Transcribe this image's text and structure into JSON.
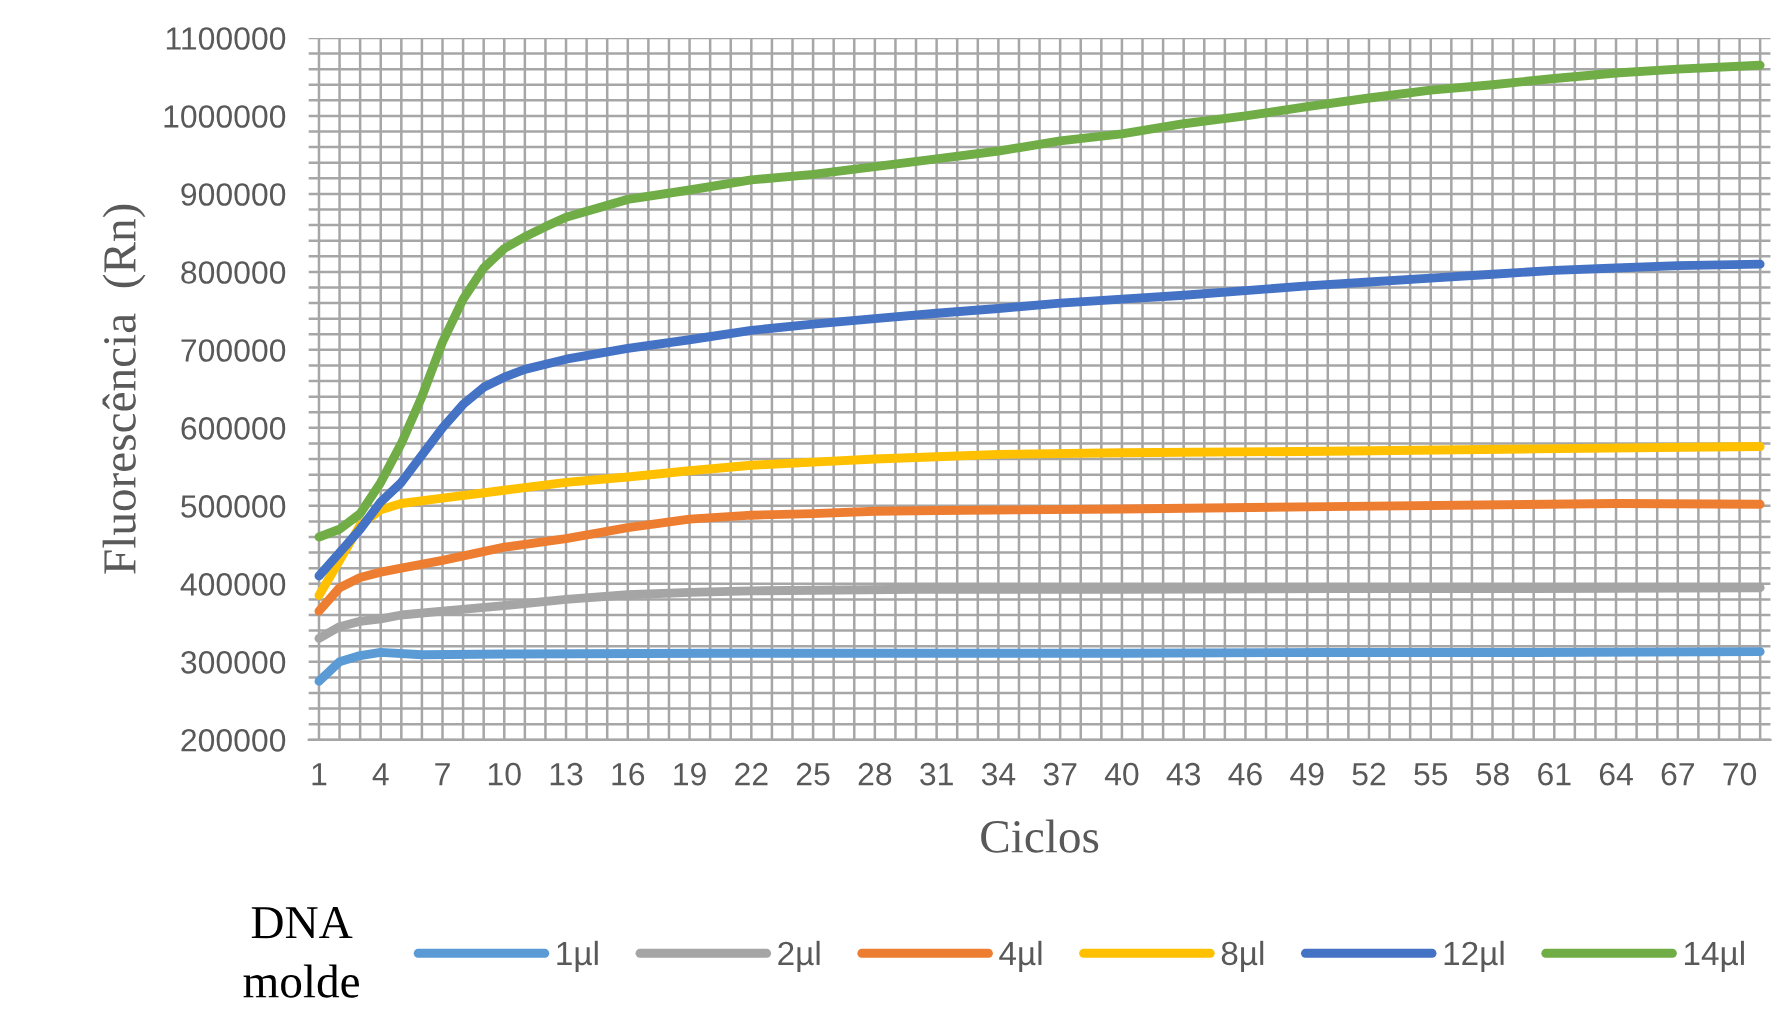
{
  "chart_data": {
    "type": "line",
    "xlabel": "Ciclos",
    "ylabel": "Fluorescência  (Rn)",
    "legend_title": "DNA\nmolde",
    "xlim": [
      0.5,
      71.5
    ],
    "xticks": [
      1,
      4,
      7,
      10,
      13,
      16,
      19,
      22,
      25,
      28,
      31,
      34,
      37,
      40,
      43,
      46,
      49,
      52,
      55,
      58,
      61,
      64,
      67,
      70
    ],
    "ylim": [
      200000,
      1100000
    ],
    "yticks": [
      200000,
      300000,
      400000,
      500000,
      600000,
      700000,
      800000,
      900000,
      1000000,
      1100000
    ],
    "grid": true,
    "legend": "bottom",
    "marker": "none",
    "line_style": "solid",
    "series": [
      {
        "name": "1µl",
        "color": "#5b9bd5",
        "x": [
          1,
          2,
          3,
          4,
          6,
          10,
          20,
          30,
          40,
          50,
          60,
          71
        ],
        "values": [
          275000,
          300000,
          308000,
          312000,
          309000,
          310000,
          311000,
          311000,
          311000,
          312000,
          312000,
          313000
        ]
      },
      {
        "name": "2µl",
        "color": "#a5a5a5",
        "x": [
          1,
          2,
          3,
          4,
          5,
          7,
          10,
          13,
          16,
          19,
          22,
          30,
          40,
          50,
          60,
          71
        ],
        "values": [
          330000,
          345000,
          352000,
          355000,
          360000,
          365000,
          372000,
          380000,
          386000,
          389000,
          391000,
          393000,
          393000,
          394000,
          394000,
          395000
        ]
      },
      {
        "name": "4µl",
        "color": "#ed7d31",
        "x": [
          1,
          2,
          3,
          4,
          5,
          7,
          10,
          13,
          16,
          19,
          22,
          25,
          28,
          31,
          40,
          50,
          64,
          71
        ],
        "values": [
          365000,
          395000,
          408000,
          415000,
          420000,
          430000,
          447000,
          458000,
          472000,
          483000,
          488000,
          490000,
          493000,
          494000,
          496000,
          499000,
          503000,
          502000
        ]
      },
      {
        "name": "8µl",
        "color": "#ffc000",
        "x": [
          1,
          2,
          3,
          4,
          5,
          7,
          10,
          13,
          16,
          19,
          22,
          25,
          28,
          31,
          34,
          40,
          50,
          60,
          71
        ],
        "values": [
          385000,
          430000,
          475000,
          495000,
          503000,
          510000,
          520000,
          530000,
          537000,
          545000,
          552000,
          556000,
          560000,
          563000,
          566000,
          568000,
          570000,
          573000,
          576000
        ]
      },
      {
        "name": "12µl",
        "color": "#4472c4",
        "x": [
          1,
          2,
          3,
          4,
          5,
          6,
          7,
          8,
          9,
          10,
          11,
          13,
          16,
          19,
          22,
          25,
          28,
          31,
          34,
          37,
          40,
          43,
          46,
          49,
          52,
          55,
          58,
          61,
          64,
          67,
          71
        ],
        "values": [
          410000,
          440000,
          470000,
          505000,
          530000,
          565000,
          600000,
          630000,
          652000,
          665000,
          675000,
          688000,
          702000,
          713000,
          725000,
          733000,
          740000,
          747000,
          753000,
          760000,
          765000,
          770000,
          776000,
          782000,
          787000,
          792000,
          797000,
          802000,
          805000,
          808000,
          810000
        ]
      },
      {
        "name": "14µl",
        "color": "#70ad47",
        "x": [
          1,
          2,
          3,
          4,
          5,
          6,
          7,
          8,
          9,
          10,
          11,
          12,
          13,
          16,
          19,
          22,
          25,
          28,
          31,
          34,
          37,
          40,
          43,
          46,
          49,
          52,
          55,
          58,
          61,
          64,
          67,
          71
        ],
        "values": [
          460000,
          470000,
          490000,
          530000,
          580000,
          640000,
          710000,
          765000,
          805000,
          830000,
          845000,
          858000,
          870000,
          893000,
          905000,
          918000,
          925000,
          935000,
          945000,
          955000,
          968000,
          977000,
          990000,
          1000000,
          1012000,
          1023000,
          1033000,
          1040000,
          1048000,
          1055000,
          1060000,
          1065000
        ]
      }
    ]
  }
}
